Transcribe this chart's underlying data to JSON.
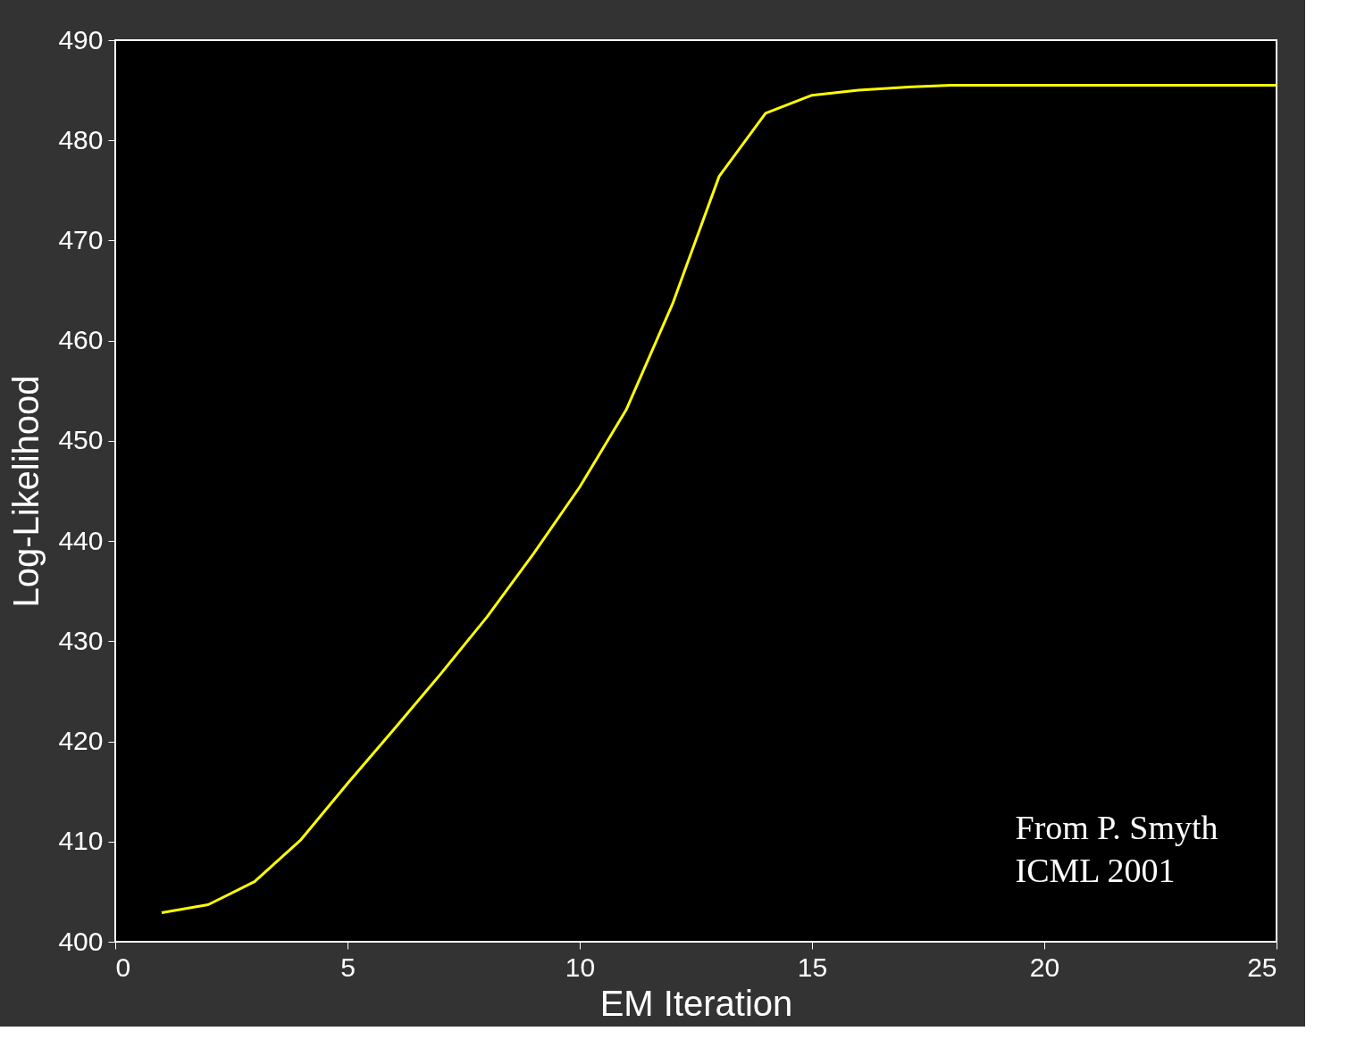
{
  "chart_data": {
    "type": "line",
    "xlabel": "EM Iteration",
    "ylabel": "Log-Likelihood",
    "x": [
      1,
      2,
      3,
      4,
      5,
      6,
      7,
      8,
      9,
      10,
      11,
      12,
      13,
      14,
      15,
      16,
      17,
      18,
      19,
      20,
      21,
      22,
      23,
      24,
      25
    ],
    "series": [
      {
        "color": "#ffff00",
        "values": [
          402.9,
          403.7,
          406.0,
          410.2,
          415.8,
          421.2,
          426.7,
          432.4,
          438.7,
          445.4,
          453.1,
          463.7,
          476.4,
          482.7,
          484.5,
          485.0,
          485.3,
          485.5,
          485.5,
          485.5,
          485.5,
          485.5,
          485.5,
          485.5,
          485.5
        ]
      }
    ],
    "xlim": [
      0,
      25
    ],
    "xticks": [
      0,
      5,
      10,
      15,
      20,
      25
    ],
    "ylim": [
      400,
      490
    ],
    "yticks": [
      400,
      410,
      420,
      430,
      440,
      450,
      460,
      470,
      480,
      490
    ],
    "grid": false,
    "marker": "none",
    "line_style": "solid",
    "annotations": [
      "From P. Smyth",
      "ICML 2001"
    ]
  }
}
